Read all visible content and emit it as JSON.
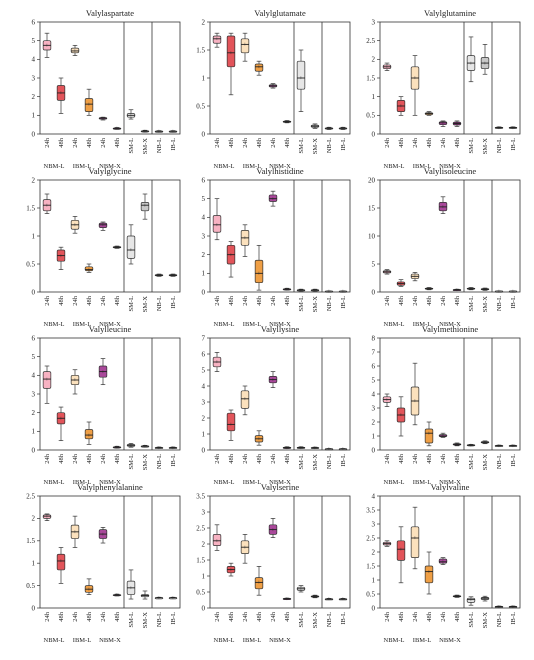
{
  "chart_data": {
    "type": "boxplot",
    "categories": [
      "24h",
      "48h",
      "24h",
      "48h",
      "24h",
      "48h",
      "SM-L",
      "SM-X",
      "NB-L",
      "IB-L"
    ],
    "groups": [
      "NBM-L",
      "IBM-L",
      "NBM-X"
    ],
    "colors": [
      "#f7b2c2",
      "#e2545a",
      "#fbe1bd",
      "#ef9f45",
      "#a9489a",
      "#7a2a6b",
      "#e6e6e6",
      "#c8c8c8",
      "#ffffff",
      "#ffffff"
    ],
    "panels": [
      {
        "title": "Valylaspartate",
        "ylim": [
          0,
          6
        ],
        "ticks": [
          0,
          1,
          2,
          3,
          4,
          5,
          6
        ],
        "boxes": [
          [
            4.1,
            4.5,
            4.75,
            5.0,
            5.4
          ],
          [
            1.1,
            1.8,
            2.2,
            2.6,
            3.0
          ],
          [
            4.2,
            4.35,
            4.45,
            4.6,
            4.75
          ],
          [
            1.0,
            1.2,
            1.6,
            1.9,
            2.4
          ],
          [
            0.75,
            0.8,
            0.85,
            0.88,
            0.9
          ],
          [
            0.25,
            0.28,
            0.3,
            0.32,
            0.35
          ],
          [
            0.8,
            0.9,
            1.0,
            1.1,
            1.3
          ],
          [
            0.1,
            0.12,
            0.15,
            0.17,
            0.2
          ],
          [
            0.1,
            0.12,
            0.14,
            0.16,
            0.18
          ],
          [
            0.1,
            0.12,
            0.14,
            0.16,
            0.18
          ]
        ]
      },
      {
        "title": "Valylglutamate",
        "ylim": [
          0,
          2
        ],
        "ticks": [
          0,
          0.5,
          1.0,
          1.5,
          2.0
        ],
        "boxes": [
          [
            1.55,
            1.62,
            1.7,
            1.75,
            1.8
          ],
          [
            0.7,
            1.2,
            1.45,
            1.75,
            1.8
          ],
          [
            1.3,
            1.45,
            1.6,
            1.7,
            1.8
          ],
          [
            1.05,
            1.12,
            1.2,
            1.25,
            1.3
          ],
          [
            0.82,
            0.84,
            0.86,
            0.88,
            0.9
          ],
          [
            0.2,
            0.21,
            0.22,
            0.23,
            0.24
          ],
          [
            0.4,
            0.8,
            1.0,
            1.3,
            1.5
          ],
          [
            0.1,
            0.12,
            0.14,
            0.16,
            0.18
          ],
          [
            0.08,
            0.09,
            0.1,
            0.11,
            0.12
          ],
          [
            0.08,
            0.09,
            0.1,
            0.11,
            0.12
          ]
        ]
      },
      {
        "title": "Valylglutamine",
        "ylim": [
          0,
          3
        ],
        "ticks": [
          0,
          0.5,
          1.0,
          1.5,
          2.0,
          2.5,
          3.0
        ],
        "boxes": [
          [
            1.7,
            1.75,
            1.8,
            1.85,
            1.9
          ],
          [
            0.5,
            0.6,
            0.75,
            0.9,
            1.0
          ],
          [
            0.5,
            1.2,
            1.5,
            1.8,
            2.1
          ],
          [
            0.5,
            0.52,
            0.55,
            0.57,
            0.6
          ],
          [
            0.2,
            0.25,
            0.3,
            0.33,
            0.35
          ],
          [
            0.2,
            0.24,
            0.28,
            0.32,
            0.35
          ],
          [
            1.4,
            1.7,
            1.9,
            2.1,
            2.6
          ],
          [
            1.6,
            1.75,
            1.9,
            2.05,
            2.4
          ],
          [
            0.15,
            0.16,
            0.17,
            0.18,
            0.19
          ],
          [
            0.15,
            0.16,
            0.17,
            0.18,
            0.19
          ]
        ]
      },
      {
        "title": "Valylglycine",
        "ylim": [
          0,
          2
        ],
        "ticks": [
          0,
          0.5,
          1.0,
          1.5,
          2.0
        ],
        "boxes": [
          [
            1.4,
            1.45,
            1.55,
            1.65,
            1.75
          ],
          [
            0.4,
            0.55,
            0.65,
            0.75,
            0.8
          ],
          [
            1.05,
            1.12,
            1.2,
            1.28,
            1.35
          ],
          [
            0.35,
            0.38,
            0.4,
            0.45,
            0.5
          ],
          [
            1.1,
            1.15,
            1.2,
            1.23,
            1.25
          ],
          [
            0.78,
            0.79,
            0.8,
            0.81,
            0.82
          ],
          [
            0.5,
            0.6,
            0.75,
            1.0,
            1.2
          ],
          [
            1.3,
            1.45,
            1.55,
            1.6,
            1.75
          ],
          [
            0.28,
            0.29,
            0.3,
            0.31,
            0.32
          ],
          [
            0.28,
            0.29,
            0.3,
            0.31,
            0.32
          ]
        ]
      },
      {
        "title": "Valylhistidine",
        "ylim": [
          0,
          6
        ],
        "ticks": [
          0,
          1,
          2,
          3,
          4,
          5,
          6
        ],
        "boxes": [
          [
            2.8,
            3.2,
            3.6,
            4.1,
            5.0
          ],
          [
            0.8,
            1.5,
            2.0,
            2.5,
            2.7
          ],
          [
            1.9,
            2.5,
            2.9,
            3.3,
            3.6
          ],
          [
            0.1,
            0.5,
            1.0,
            1.7,
            2.5
          ],
          [
            4.6,
            4.85,
            5.0,
            5.2,
            5.4
          ],
          [
            0.1,
            0.12,
            0.15,
            0.17,
            0.2
          ],
          [
            0.05,
            0.07,
            0.1,
            0.12,
            0.15
          ],
          [
            0.05,
            0.07,
            0.1,
            0.12,
            0.15
          ],
          [
            0.02,
            0.03,
            0.04,
            0.05,
            0.06
          ],
          [
            0.02,
            0.03,
            0.04,
            0.05,
            0.06
          ]
        ]
      },
      {
        "title": "Valylisoleucine",
        "ylim": [
          0,
          20
        ],
        "ticks": [
          0,
          5,
          10,
          15,
          20
        ],
        "boxes": [
          [
            3.2,
            3.4,
            3.6,
            3.8,
            4.0
          ],
          [
            1.0,
            1.2,
            1.5,
            1.8,
            2.2
          ],
          [
            2.0,
            2.4,
            2.8,
            3.2,
            3.5
          ],
          [
            0.4,
            0.5,
            0.6,
            0.7,
            0.8
          ],
          [
            14.0,
            14.5,
            15.2,
            16.0,
            17.0
          ],
          [
            0.3,
            0.35,
            0.4,
            0.45,
            0.5
          ],
          [
            0.4,
            0.5,
            0.6,
            0.7,
            0.8
          ],
          [
            0.3,
            0.4,
            0.5,
            0.6,
            0.7
          ],
          [
            0.1,
            0.12,
            0.15,
            0.17,
            0.2
          ],
          [
            0.1,
            0.12,
            0.15,
            0.17,
            0.2
          ]
        ]
      },
      {
        "title": "Valylleucine",
        "ylim": [
          0,
          6
        ],
        "ticks": [
          0,
          1,
          2,
          3,
          4,
          5,
          6
        ],
        "boxes": [
          [
            2.5,
            3.3,
            3.8,
            4.2,
            4.5
          ],
          [
            0.5,
            1.4,
            1.7,
            2.0,
            2.3
          ],
          [
            3.0,
            3.5,
            3.75,
            4.0,
            4.3
          ],
          [
            0.3,
            0.6,
            0.8,
            1.1,
            1.5
          ],
          [
            3.5,
            3.9,
            4.2,
            4.5,
            4.9
          ],
          [
            0.1,
            0.12,
            0.15,
            0.17,
            0.2
          ],
          [
            0.15,
            0.2,
            0.25,
            0.3,
            0.35
          ],
          [
            0.15,
            0.18,
            0.2,
            0.22,
            0.25
          ],
          [
            0.08,
            0.1,
            0.12,
            0.14,
            0.16
          ],
          [
            0.08,
            0.1,
            0.12,
            0.14,
            0.16
          ]
        ]
      },
      {
        "title": "Valyllysine",
        "ylim": [
          0,
          7
        ],
        "ticks": [
          0,
          1,
          2,
          3,
          4,
          5,
          6,
          7
        ],
        "boxes": [
          [
            4.9,
            5.2,
            5.5,
            5.8,
            6.1
          ],
          [
            0.6,
            1.2,
            1.6,
            2.3,
            2.5
          ],
          [
            2.2,
            2.6,
            3.2,
            3.7,
            4.0
          ],
          [
            0.3,
            0.5,
            0.7,
            0.9,
            1.2
          ],
          [
            3.9,
            4.2,
            4.4,
            4.6,
            4.9
          ],
          [
            0.1,
            0.12,
            0.15,
            0.17,
            0.2
          ],
          [
            0.1,
            0.12,
            0.15,
            0.17,
            0.2
          ],
          [
            0.1,
            0.12,
            0.14,
            0.16,
            0.18
          ],
          [
            0.05,
            0.06,
            0.07,
            0.08,
            0.09
          ],
          [
            0.05,
            0.06,
            0.07,
            0.08,
            0.09
          ]
        ]
      },
      {
        "title": "Valylmethionine",
        "ylim": [
          0,
          8
        ],
        "ticks": [
          0,
          1,
          2,
          3,
          4,
          5,
          6,
          7,
          8
        ],
        "boxes": [
          [
            3.1,
            3.4,
            3.6,
            3.8,
            4.0
          ],
          [
            1.0,
            2.0,
            2.5,
            3.0,
            3.8
          ],
          [
            1.8,
            2.5,
            3.5,
            4.5,
            6.2
          ],
          [
            0.3,
            0.5,
            1.2,
            1.5,
            2.0
          ],
          [
            0.9,
            0.95,
            1.0,
            1.1,
            1.2
          ],
          [
            0.3,
            0.35,
            0.4,
            0.45,
            0.5
          ],
          [
            0.3,
            0.32,
            0.35,
            0.38,
            0.4
          ],
          [
            0.45,
            0.5,
            0.55,
            0.6,
            0.65
          ],
          [
            0.25,
            0.27,
            0.3,
            0.33,
            0.35
          ],
          [
            0.25,
            0.27,
            0.3,
            0.33,
            0.35
          ]
        ]
      },
      {
        "title": "Valylphenylalanine",
        "ylim": [
          0,
          2.5
        ],
        "ticks": [
          0,
          0.5,
          1.0,
          1.5,
          2.0,
          2.5
        ],
        "boxes": [
          [
            1.95,
            2.0,
            2.05,
            2.08,
            2.1
          ],
          [
            0.55,
            0.85,
            1.05,
            1.2,
            1.35
          ],
          [
            1.35,
            1.55,
            1.7,
            1.85,
            2.05
          ],
          [
            0.3,
            0.35,
            0.42,
            0.5,
            0.65
          ],
          [
            1.45,
            1.55,
            1.65,
            1.75,
            1.8
          ],
          [
            0.27,
            0.28,
            0.29,
            0.3,
            0.31
          ],
          [
            0.2,
            0.3,
            0.45,
            0.6,
            0.85
          ],
          [
            0.2,
            0.25,
            0.28,
            0.3,
            0.38
          ],
          [
            0.22,
            0.22,
            0.23,
            0.23,
            0.24
          ],
          [
            0.22,
            0.22,
            0.23,
            0.23,
            0.24
          ]
        ]
      },
      {
        "title": "Valylserine",
        "ylim": [
          0,
          3.5
        ],
        "ticks": [
          0,
          0.5,
          1.0,
          1.5,
          2.0,
          2.5,
          3.0,
          3.5
        ],
        "boxes": [
          [
            1.8,
            1.95,
            2.1,
            2.3,
            2.6
          ],
          [
            1.0,
            1.1,
            1.2,
            1.3,
            1.4
          ],
          [
            1.4,
            1.7,
            1.9,
            2.1,
            2.3
          ],
          [
            0.4,
            0.6,
            0.8,
            0.95,
            1.3
          ],
          [
            2.2,
            2.3,
            2.45,
            2.6,
            2.8
          ],
          [
            0.27,
            0.28,
            0.29,
            0.3,
            0.31
          ],
          [
            0.5,
            0.55,
            0.6,
            0.65,
            0.7
          ],
          [
            0.32,
            0.34,
            0.36,
            0.38,
            0.4
          ],
          [
            0.26,
            0.27,
            0.28,
            0.29,
            0.3
          ],
          [
            0.26,
            0.27,
            0.28,
            0.29,
            0.3
          ]
        ]
      },
      {
        "title": "Valylvaline",
        "ylim": [
          0,
          4
        ],
        "ticks": [
          0,
          0.5,
          1.0,
          1.5,
          2.0,
          2.5,
          3.0,
          3.5,
          4.0
        ],
        "boxes": [
          [
            2.2,
            2.25,
            2.3,
            2.35,
            2.4
          ],
          [
            0.9,
            1.7,
            2.1,
            2.4,
            2.9
          ],
          [
            1.4,
            1.8,
            2.5,
            2.9,
            3.6
          ],
          [
            0.5,
            0.9,
            1.3,
            1.5,
            2.0
          ],
          [
            1.55,
            1.6,
            1.65,
            1.75,
            1.8
          ],
          [
            0.38,
            0.4,
            0.42,
            0.44,
            0.46
          ],
          [
            0.1,
            0.2,
            0.3,
            0.35,
            0.4
          ],
          [
            0.25,
            0.3,
            0.35,
            0.38,
            0.42
          ],
          [
            0.03,
            0.04,
            0.05,
            0.06,
            0.07
          ],
          [
            0.03,
            0.04,
            0.05,
            0.06,
            0.07
          ]
        ]
      }
    ]
  }
}
